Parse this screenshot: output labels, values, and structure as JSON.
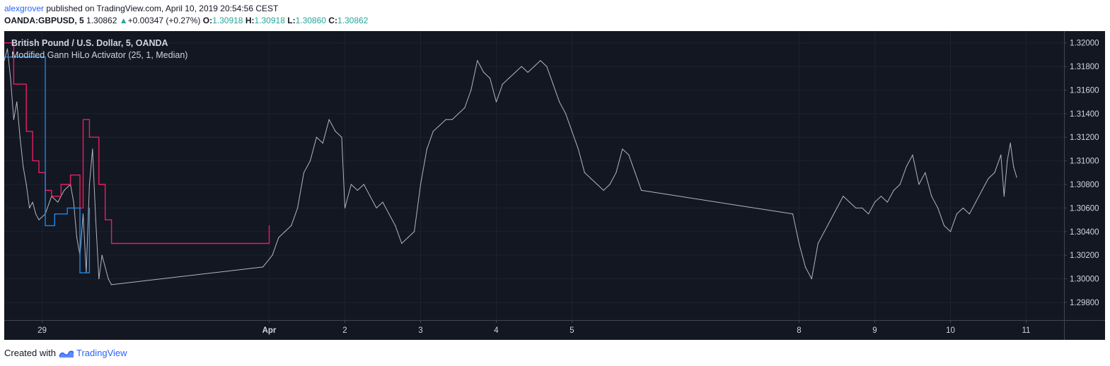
{
  "header": {
    "author": "alexgrover",
    "published_text": " published on TradingView.com, April 10, 2019 20:54:56 CEST"
  },
  "ohlc": {
    "symbol": "OANDA:GBPUSD, 5",
    "price": "1.30862",
    "change": "+0.00347 (+0.27%)",
    "o_label": "O:",
    "o": "1.30918",
    "h_label": "H:",
    "h": "1.30918",
    "l_label": "L:",
    "l": "1.30860",
    "c_label": "C:",
    "c": "1.30862"
  },
  "legend": {
    "symbol_title": "British Pound / U.S. Dollar, 5, OANDA",
    "indicator": "Modified Gann HiLo Activator (25, 1, Median)"
  },
  "footer": {
    "created_with": "Created with",
    "brand": "TradingView"
  },
  "colors": {
    "background": "#131722",
    "grid": "#1e2230",
    "price": "#b2b5be",
    "resistance": "#e91e63",
    "support": "#1e88e5",
    "axis_text": "#d1d4dc",
    "axis_line": "#434651"
  },
  "chart_data": {
    "type": "line",
    "title": "British Pound / U.S. Dollar, 5, OANDA",
    "xlabel": "",
    "ylabel": "",
    "ylim": [
      1.2965,
      1.321
    ],
    "y_ticks": [
      1.298,
      1.3,
      1.302,
      1.304,
      1.306,
      1.308,
      1.31,
      1.312,
      1.314,
      1.316,
      1.318,
      1.32
    ],
    "y_tick_labels": [
      "1.29800",
      "1.30000",
      "1.30200",
      "1.30400",
      "1.30600",
      "1.30800",
      "1.31000",
      "1.31200",
      "1.31400",
      "1.31600",
      "1.31800",
      "1.32000"
    ],
    "x_domain": [
      "2019-03-28 12:00",
      "2019-04-11 12:00"
    ],
    "x_ticks": [
      {
        "label": "29",
        "t": "2019-03-29 00:00",
        "bold": false
      },
      {
        "label": "Apr",
        "t": "2019-04-01 00:00",
        "bold": true
      },
      {
        "label": "2",
        "t": "2019-04-02 00:00",
        "bold": false
      },
      {
        "label": "3",
        "t": "2019-04-03 00:00",
        "bold": false
      },
      {
        "label": "4",
        "t": "2019-04-04 00:00",
        "bold": false
      },
      {
        "label": "5",
        "t": "2019-04-05 00:00",
        "bold": false
      },
      {
        "label": "8",
        "t": "2019-04-08 00:00",
        "bold": false
      },
      {
        "label": "9",
        "t": "2019-04-09 00:00",
        "bold": false
      },
      {
        "label": "10",
        "t": "2019-04-10 00:00",
        "bold": false
      },
      {
        "label": "11",
        "t": "2019-04-11 00:00",
        "bold": false
      }
    ],
    "grid": true,
    "series": [
      {
        "name": "GBPUSD",
        "color": "#b2b5be",
        "points": [
          [
            "2019-03-28 12:00",
            1.3185
          ],
          [
            "2019-03-28 13:00",
            1.3195
          ],
          [
            "2019-03-28 14:00",
            1.317
          ],
          [
            "2019-03-28 15:00",
            1.3135
          ],
          [
            "2019-03-28 16:00",
            1.315
          ],
          [
            "2019-03-28 17:00",
            1.312
          ],
          [
            "2019-03-28 18:00",
            1.3095
          ],
          [
            "2019-03-28 19:00",
            1.308
          ],
          [
            "2019-03-28 20:00",
            1.306
          ],
          [
            "2019-03-28 21:00",
            1.3065
          ],
          [
            "2019-03-28 22:00",
            1.3055
          ],
          [
            "2019-03-28 23:00",
            1.305
          ],
          [
            "2019-03-29 01:00",
            1.3055
          ],
          [
            "2019-03-29 03:00",
            1.307
          ],
          [
            "2019-03-29 05:00",
            1.3065
          ],
          [
            "2019-03-29 07:00",
            1.3075
          ],
          [
            "2019-03-29 09:00",
            1.308
          ],
          [
            "2019-03-29 10:00",
            1.3065
          ],
          [
            "2019-03-29 11:00",
            1.3035
          ],
          [
            "2019-03-29 12:00",
            1.302
          ],
          [
            "2019-03-29 13:00",
            1.3055
          ],
          [
            "2019-03-29 14:00",
            1.3005
          ],
          [
            "2019-03-29 15:00",
            1.308
          ],
          [
            "2019-03-29 16:00",
            1.311
          ],
          [
            "2019-03-29 17:00",
            1.305
          ],
          [
            "2019-03-29 18:00",
            1.3
          ],
          [
            "2019-03-29 19:00",
            1.302
          ],
          [
            "2019-03-29 21:00",
            1.3
          ],
          [
            "2019-03-29 22:00",
            1.2995
          ],
          [
            "2019-03-31 22:00",
            1.301
          ],
          [
            "2019-04-01 01:00",
            1.302
          ],
          [
            "2019-04-01 03:00",
            1.3035
          ],
          [
            "2019-04-01 05:00",
            1.304
          ],
          [
            "2019-04-01 07:00",
            1.3045
          ],
          [
            "2019-04-01 09:00",
            1.306
          ],
          [
            "2019-04-01 11:00",
            1.309
          ],
          [
            "2019-04-01 13:00",
            1.31
          ],
          [
            "2019-04-01 15:00",
            1.312
          ],
          [
            "2019-04-01 17:00",
            1.3115
          ],
          [
            "2019-04-01 19:00",
            1.3135
          ],
          [
            "2019-04-01 21:00",
            1.3125
          ],
          [
            "2019-04-01 23:00",
            1.312
          ],
          [
            "2019-04-02 00:00",
            1.306
          ],
          [
            "2019-04-02 02:00",
            1.308
          ],
          [
            "2019-04-02 04:00",
            1.3075
          ],
          [
            "2019-04-02 06:00",
            1.308
          ],
          [
            "2019-04-02 08:00",
            1.307
          ],
          [
            "2019-04-02 10:00",
            1.306
          ],
          [
            "2019-04-02 12:00",
            1.3065
          ],
          [
            "2019-04-02 14:00",
            1.3055
          ],
          [
            "2019-04-02 16:00",
            1.3045
          ],
          [
            "2019-04-02 18:00",
            1.303
          ],
          [
            "2019-04-02 20:00",
            1.3035
          ],
          [
            "2019-04-02 22:00",
            1.304
          ],
          [
            "2019-04-03 00:00",
            1.308
          ],
          [
            "2019-04-03 02:00",
            1.311
          ],
          [
            "2019-04-03 04:00",
            1.3125
          ],
          [
            "2019-04-03 06:00",
            1.313
          ],
          [
            "2019-04-03 08:00",
            1.3135
          ],
          [
            "2019-04-03 10:00",
            1.3135
          ],
          [
            "2019-04-03 12:00",
            1.314
          ],
          [
            "2019-04-03 14:00",
            1.3145
          ],
          [
            "2019-04-03 16:00",
            1.316
          ],
          [
            "2019-04-03 18:00",
            1.3185
          ],
          [
            "2019-04-03 20:00",
            1.3175
          ],
          [
            "2019-04-03 22:00",
            1.317
          ],
          [
            "2019-04-04 00:00",
            1.315
          ],
          [
            "2019-04-04 02:00",
            1.3165
          ],
          [
            "2019-04-04 04:00",
            1.317
          ],
          [
            "2019-04-04 06:00",
            1.3175
          ],
          [
            "2019-04-04 08:00",
            1.318
          ],
          [
            "2019-04-04 10:00",
            1.3175
          ],
          [
            "2019-04-04 12:00",
            1.318
          ],
          [
            "2019-04-04 14:00",
            1.3185
          ],
          [
            "2019-04-04 16:00",
            1.318
          ],
          [
            "2019-04-04 18:00",
            1.3165
          ],
          [
            "2019-04-04 20:00",
            1.315
          ],
          [
            "2019-04-04 22:00",
            1.314
          ],
          [
            "2019-04-05 00:00",
            1.3125
          ],
          [
            "2019-04-05 02:00",
            1.311
          ],
          [
            "2019-04-05 04:00",
            1.309
          ],
          [
            "2019-04-05 06:00",
            1.3085
          ],
          [
            "2019-04-05 08:00",
            1.308
          ],
          [
            "2019-04-05 10:00",
            1.3075
          ],
          [
            "2019-04-05 12:00",
            1.308
          ],
          [
            "2019-04-05 14:00",
            1.309
          ],
          [
            "2019-04-05 16:00",
            1.311
          ],
          [
            "2019-04-05 18:00",
            1.3105
          ],
          [
            "2019-04-05 20:00",
            1.309
          ],
          [
            "2019-04-05 22:00",
            1.3075
          ],
          [
            "2019-04-07 22:00",
            1.3055
          ],
          [
            "2019-04-08 00:00",
            1.303
          ],
          [
            "2019-04-08 02:00",
            1.301
          ],
          [
            "2019-04-08 04:00",
            1.3
          ],
          [
            "2019-04-08 06:00",
            1.303
          ],
          [
            "2019-04-08 08:00",
            1.304
          ],
          [
            "2019-04-08 10:00",
            1.305
          ],
          [
            "2019-04-08 12:00",
            1.306
          ],
          [
            "2019-04-08 14:00",
            1.307
          ],
          [
            "2019-04-08 16:00",
            1.3065
          ],
          [
            "2019-04-08 18:00",
            1.306
          ],
          [
            "2019-04-08 20:00",
            1.306
          ],
          [
            "2019-04-08 22:00",
            1.3055
          ],
          [
            "2019-04-09 00:00",
            1.3065
          ],
          [
            "2019-04-09 02:00",
            1.307
          ],
          [
            "2019-04-09 04:00",
            1.3065
          ],
          [
            "2019-04-09 06:00",
            1.3075
          ],
          [
            "2019-04-09 08:00",
            1.308
          ],
          [
            "2019-04-09 10:00",
            1.3095
          ],
          [
            "2019-04-09 12:00",
            1.3105
          ],
          [
            "2019-04-09 14:00",
            1.308
          ],
          [
            "2019-04-09 16:00",
            1.309
          ],
          [
            "2019-04-09 18:00",
            1.307
          ],
          [
            "2019-04-09 20:00",
            1.306
          ],
          [
            "2019-04-09 22:00",
            1.3045
          ],
          [
            "2019-04-10 00:00",
            1.304
          ],
          [
            "2019-04-10 02:00",
            1.3055
          ],
          [
            "2019-04-10 04:00",
            1.306
          ],
          [
            "2019-04-10 06:00",
            1.3055
          ],
          [
            "2019-04-10 08:00",
            1.3065
          ],
          [
            "2019-04-10 10:00",
            1.3075
          ],
          [
            "2019-04-10 12:00",
            1.3085
          ],
          [
            "2019-04-10 14:00",
            1.309
          ],
          [
            "2019-04-10 16:00",
            1.3105
          ],
          [
            "2019-04-10 17:00",
            1.307
          ],
          [
            "2019-04-10 18:00",
            1.31
          ],
          [
            "2019-04-10 19:00",
            1.3115
          ],
          [
            "2019-04-10 20:00",
            1.3095
          ],
          [
            "2019-04-10 21:00",
            1.3086
          ]
        ]
      },
      {
        "name": "Modified Gann HiLo Activator (resistance)",
        "color": "#e91e63",
        "step": true,
        "points": [
          [
            "2019-03-28 12:00",
            1.32
          ],
          [
            "2019-03-28 15:00",
            1.3165
          ],
          [
            "2019-03-28 19:00",
            1.3125
          ],
          [
            "2019-03-28 21:00",
            1.31
          ],
          [
            "2019-03-28 23:00",
            1.309
          ],
          [
            "2019-03-29 01:00",
            1.3075
          ],
          [
            "2019-03-29 03:00",
            1.307
          ],
          [
            "2019-03-29 06:00",
            1.308
          ],
          [
            "2019-03-29 09:00",
            1.3088
          ],
          [
            "2019-03-29 12:00",
            1.306
          ],
          [
            "2019-03-29 13:00",
            1.3135
          ],
          [
            "2019-03-29 15:00",
            1.312
          ],
          [
            "2019-03-29 18:00",
            1.308
          ],
          [
            "2019-03-29 20:00",
            1.305
          ],
          [
            "2019-03-29 22:00",
            1.303
          ],
          [
            "2019-04-01 00:00",
            1.3045
          ]
        ]
      },
      {
        "name": "Modified Gann HiLo Activator (support)",
        "color": "#1e88e5",
        "step": true,
        "points": [
          [
            "2019-03-28 12:00",
            1.3188
          ],
          [
            "2019-03-29 01:00",
            1.3045
          ],
          [
            "2019-03-29 04:00",
            1.3055
          ],
          [
            "2019-03-29 08:00",
            1.306
          ],
          [
            "2019-03-29 12:00",
            1.3005
          ],
          [
            "2019-03-29 15:00",
            1.306
          ]
        ]
      }
    ]
  }
}
